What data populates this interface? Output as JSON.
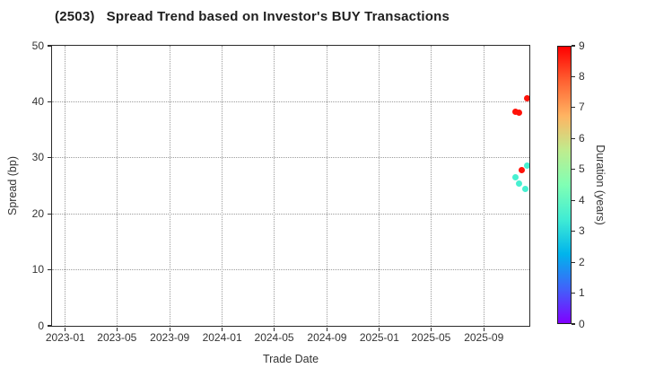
{
  "title": "(2503)   Spread Trend based on Investor's BUY Transactions",
  "axes": {
    "xlabel": "Trade Date",
    "ylabel": "Spread (bp)",
    "y_range": [
      0,
      50
    ],
    "y_ticks": [
      0,
      10,
      20,
      30,
      40,
      50
    ],
    "x_range": [
      "2022-12-01",
      "2025-12-16"
    ],
    "x_ticks": [
      {
        "label": "2023-01",
        "date": "2023-01-01"
      },
      {
        "label": "2023-05",
        "date": "2023-05-01"
      },
      {
        "label": "2023-09",
        "date": "2023-09-01"
      },
      {
        "label": "2024-01",
        "date": "2024-01-01"
      },
      {
        "label": "2024-05",
        "date": "2024-05-01"
      },
      {
        "label": "2024-09",
        "date": "2024-09-01"
      },
      {
        "label": "2025-01",
        "date": "2025-01-01"
      },
      {
        "label": "2025-05",
        "date": "2025-05-01"
      },
      {
        "label": "2025-09",
        "date": "2025-09-01"
      }
    ]
  },
  "colorbar": {
    "label": "Duration (years)",
    "range": [
      0,
      9
    ],
    "ticks": [
      0,
      1,
      2,
      3,
      4,
      5,
      6,
      7,
      8,
      9
    ],
    "gradient_stops": [
      "#8000ff",
      "#4062fa",
      "#00b4ec",
      "#40ecd4",
      "#80ffb4",
      "#bfec8e",
      "#ffb462",
      "#ff6232",
      "#ff0000"
    ]
  },
  "chart_data": {
    "type": "scatter",
    "title": "(2503)   Spread Trend based on Investor's BUY Transactions",
    "xlabel": "Trade Date",
    "ylabel": "Spread (bp)",
    "ylim": [
      0,
      50
    ],
    "grid": "dotted",
    "color_by": "Duration (years)",
    "colormap": "rainbow",
    "color_range": [
      0,
      9
    ],
    "points": [
      {
        "date": "2025-11-13",
        "spread": 38.2,
        "duration": 8.8
      },
      {
        "date": "2025-11-22",
        "spread": 38.1,
        "duration": 8.8
      },
      {
        "date": "2025-12-11",
        "spread": 40.6,
        "duration": 8.8
      },
      {
        "date": "2025-11-29",
        "spread": 27.8,
        "duration": 8.8
      },
      {
        "date": "2025-12-11",
        "spread": 28.6,
        "duration": 3.5
      },
      {
        "date": "2025-11-14",
        "spread": 26.6,
        "duration": 3.5
      },
      {
        "date": "2025-11-23",
        "spread": 25.4,
        "duration": 3.5
      },
      {
        "date": "2025-12-07",
        "spread": 24.4,
        "duration": 3.5
      }
    ]
  }
}
